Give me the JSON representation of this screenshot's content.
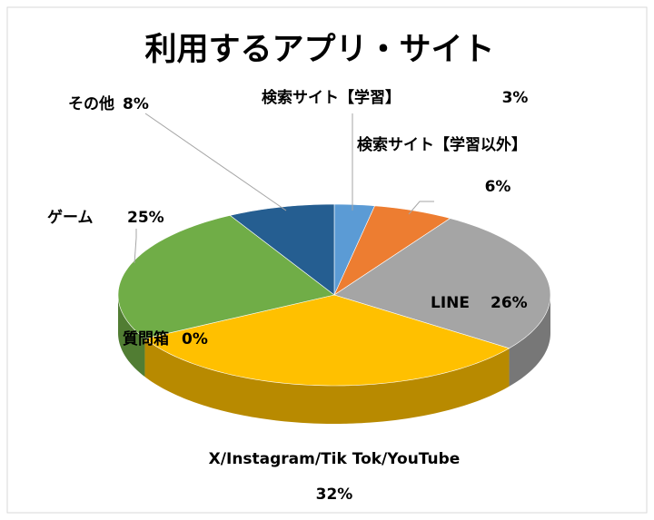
{
  "chart_data": {
    "type": "pie",
    "title": "利用するアプリ・サイト",
    "categories": [
      "検索サイト【学習】",
      "検索サイト【学習以外】",
      "LINE",
      "X/Instagram/Tik Tok/YouTube",
      "質問箱",
      "ゲーム",
      "その他"
    ],
    "values": [
      3,
      6,
      26,
      32,
      0,
      25,
      8
    ],
    "value_labels": [
      "3%",
      "6%",
      "26%",
      "32%",
      "0%",
      "25%",
      "8%"
    ],
    "colors": [
      "#5b9bd5",
      "#ed7d31",
      "#a5a5a5",
      "#ffc000",
      "#4472c4",
      "#70ad47",
      "#255e91"
    ]
  }
}
